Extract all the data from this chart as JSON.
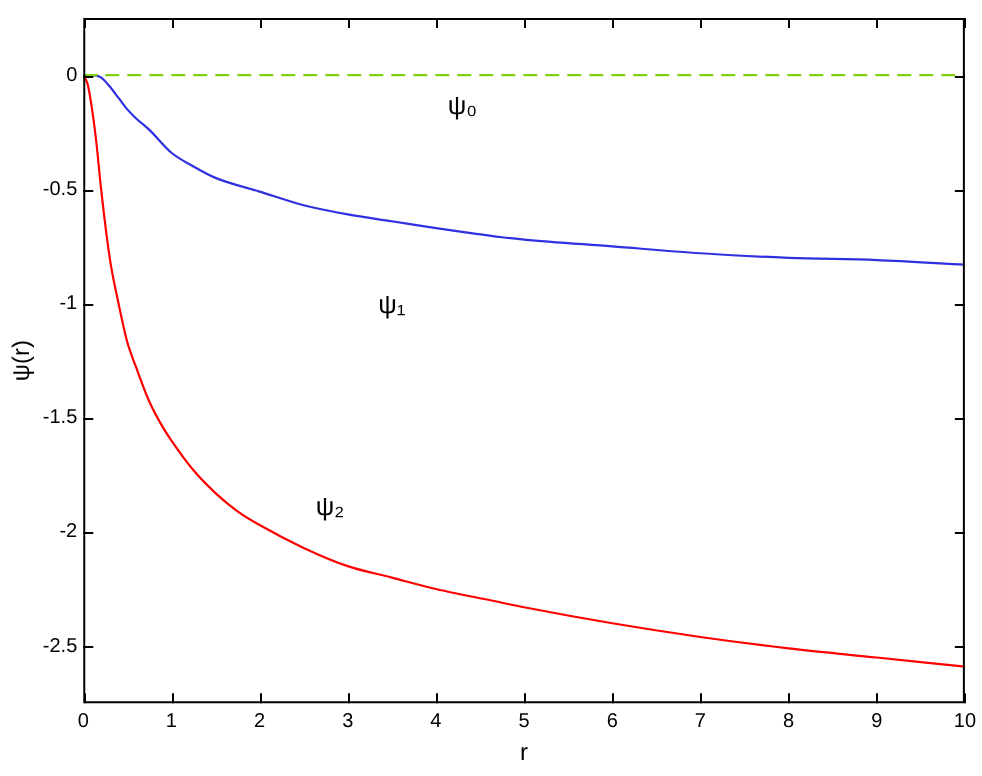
{
  "chart_data": {
    "type": "line",
    "xlabel": "r",
    "ylabel": "ψ(r)",
    "xlim": [
      0,
      10
    ],
    "ylim": [
      -2.75,
      0.25
    ],
    "xticks": [
      0,
      1,
      2,
      3,
      4,
      5,
      6,
      7,
      8,
      9,
      10
    ],
    "yticks": [
      0,
      -0.5,
      -1,
      -1.5,
      -2,
      -2.5
    ],
    "grid": false,
    "legend": false,
    "marker": "none",
    "series": [
      {
        "name": "ψ₀",
        "color": "#80d010",
        "line_style": "dashed",
        "x": [
          0,
          10
        ],
        "values": [
          0,
          0
        ]
      },
      {
        "name": "ψ₁",
        "color": "#3030e0",
        "line_style": "solid",
        "x": [
          0,
          0.1,
          0.2,
          0.3,
          0.4,
          0.5,
          0.6,
          0.75,
          1,
          1.25,
          1.5,
          2,
          2.5,
          3,
          3.5,
          4,
          4.75,
          5,
          6,
          7,
          8,
          9,
          10
        ],
        "values": [
          0,
          0,
          -0.01,
          -0.05,
          -0.1,
          -0.15,
          -0.19,
          -0.24,
          -0.34,
          -0.4,
          -0.45,
          -0.51,
          -0.57,
          -0.61,
          -0.64,
          -0.67,
          -0.71,
          -0.72,
          -0.75,
          -0.78,
          -0.8,
          -0.81,
          -0.83
        ]
      },
      {
        "name": "ψ₂",
        "color": "#ff0000",
        "line_style": "solid",
        "x": [
          0,
          0.05,
          0.1,
          0.15,
          0.2,
          0.3,
          0.4,
          0.5,
          0.6,
          0.75,
          0.9,
          1,
          1.25,
          1.5,
          1.75,
          2,
          2.5,
          3,
          3.5,
          4,
          4.75,
          5,
          6,
          7,
          8,
          9,
          10
        ],
        "values": [
          0,
          -0.04,
          -0.15,
          -0.3,
          -0.49,
          -0.8,
          -1.0,
          -1.17,
          -1.28,
          -1.43,
          -1.54,
          -1.6,
          -1.73,
          -1.83,
          -1.91,
          -1.97,
          -2.07,
          -2.15,
          -2.2,
          -2.25,
          -2.31,
          -2.33,
          -2.4,
          -2.46,
          -2.51,
          -2.55,
          -2.59
        ]
      }
    ]
  }
}
